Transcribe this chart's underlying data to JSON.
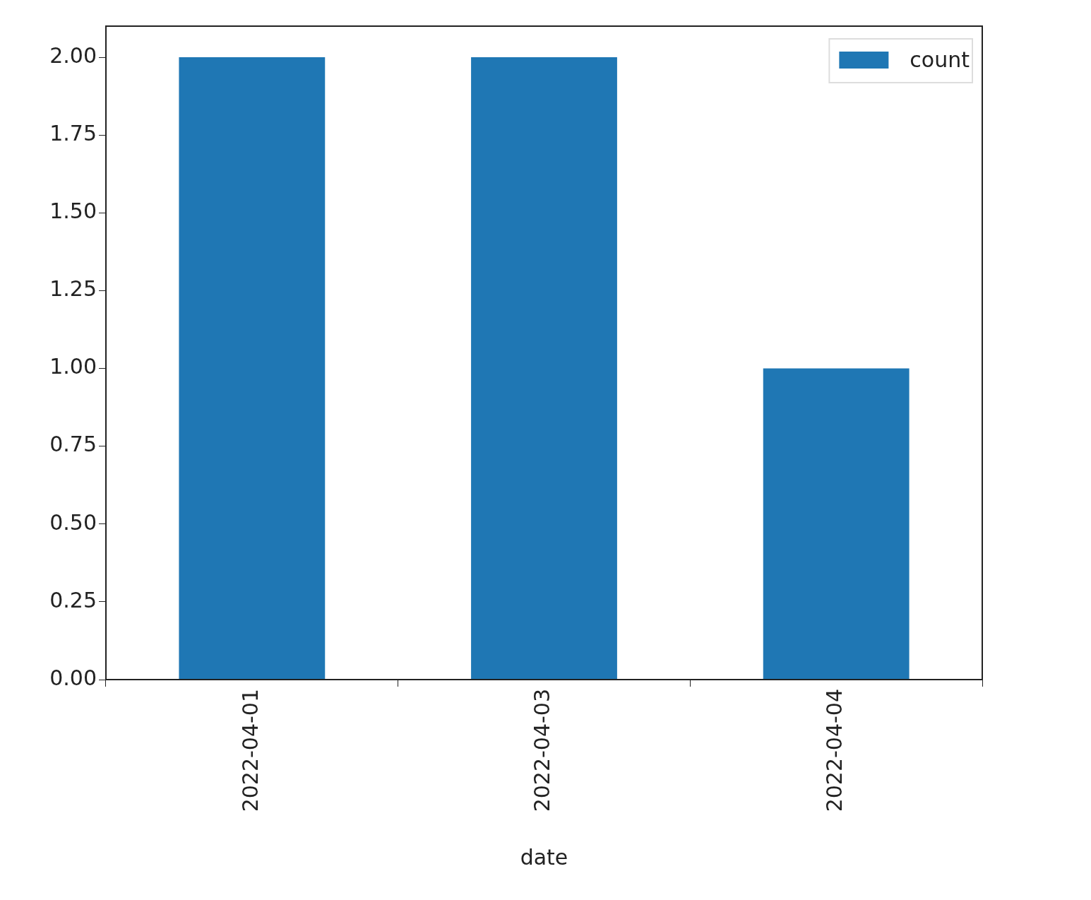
{
  "chart_data": {
    "type": "bar",
    "xlabel": "date",
    "categories": [
      "2022-04-01",
      "2022-04-03",
      "2022-04-04"
    ],
    "series": [
      {
        "name": "count",
        "color": "#1f77b4",
        "values": [
          2,
          2,
          1
        ]
      }
    ],
    "ylim": [
      0,
      2.1
    ],
    "yticks": [
      {
        "value": 0,
        "label": "0.00"
      },
      {
        "value": 0.25,
        "label": "0.25"
      },
      {
        "value": 0.5,
        "label": "0.50"
      },
      {
        "value": 0.75,
        "label": "0.75"
      },
      {
        "value": 1,
        "label": "1.00"
      },
      {
        "value": 1.25,
        "label": "1.25"
      },
      {
        "value": 1.5,
        "label": "1.50"
      },
      {
        "value": 1.75,
        "label": "1.75"
      },
      {
        "value": 2,
        "label": "2.00"
      }
    ],
    "grid": false,
    "legend": "top right"
  }
}
